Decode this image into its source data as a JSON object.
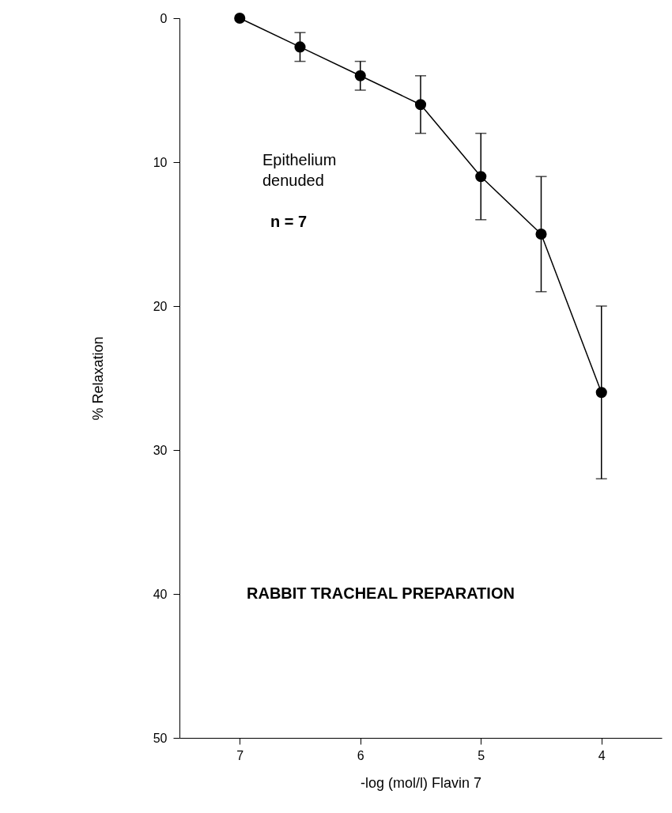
{
  "chart_data": {
    "type": "line",
    "xlabel": "-log (mol/l) Flavin 7",
    "ylabel": "% Relaxation",
    "x": [
      7,
      6.5,
      6,
      5.5,
      5,
      4.5,
      4
    ],
    "series": [
      {
        "color": "#000000",
        "values": [
          0,
          2,
          4,
          6,
          11,
          15,
          26
        ],
        "errors": [
          null,
          1,
          1,
          2,
          3,
          4,
          6
        ]
      }
    ],
    "xlim": [
      7.5,
      3.5
    ],
    "xticks": [
      7,
      6,
      5,
      4
    ],
    "ylim": [
      50,
      0
    ],
    "yticks": [
      0,
      10,
      20,
      30,
      40,
      50
    ],
    "grid": false,
    "marker": "circle",
    "line_style": "solid",
    "annotations": [
      "Epithelium\ndenuded",
      "n = 7",
      "RABBIT TRACHEAL PREPARATION"
    ]
  }
}
